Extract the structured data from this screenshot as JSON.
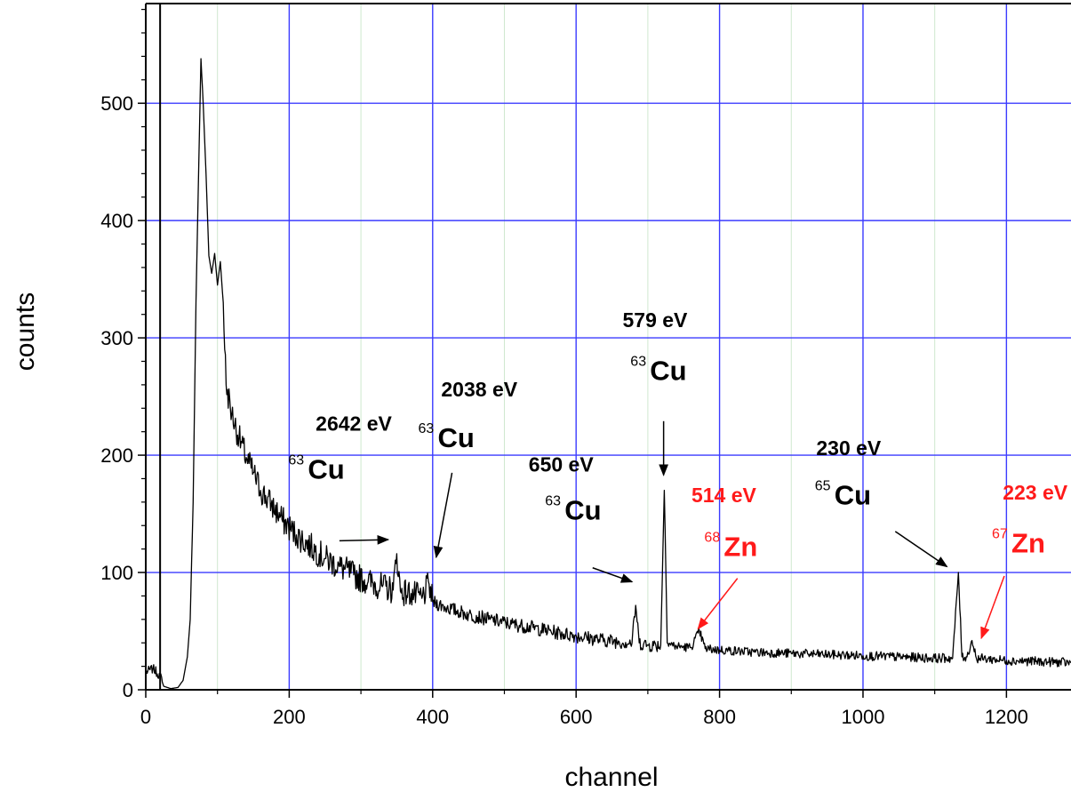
{
  "chart_data": {
    "type": "line",
    "xlabel": "channel",
    "ylabel": "counts",
    "xlim": [
      0,
      1290
    ],
    "ylim": [
      0,
      585
    ],
    "x_ticks": [
      0,
      200,
      400,
      600,
      800,
      1000,
      1200
    ],
    "y_ticks": [
      0,
      100,
      200,
      300,
      400,
      500
    ],
    "x_tick_labels": [
      "0",
      "200",
      "400",
      "600",
      "800",
      "1000",
      "1200"
    ],
    "y_tick_labels": [
      "0",
      "100",
      "200",
      "300",
      "400",
      "500"
    ],
    "grid": true,
    "vertical_marker_x": 20,
    "series": [
      {
        "color": "#000000",
        "points": [
          [
            0,
            15
          ],
          [
            10,
            18
          ],
          [
            20,
            12
          ],
          [
            25,
            3
          ],
          [
            35,
            1
          ],
          [
            45,
            2
          ],
          [
            52,
            8
          ],
          [
            58,
            28
          ],
          [
            62,
            60
          ],
          [
            66,
            160
          ],
          [
            70,
            330
          ],
          [
            74,
            450
          ],
          [
            77,
            538
          ],
          [
            80,
            500
          ],
          [
            84,
            440
          ],
          [
            88,
            370
          ],
          [
            92,
            355
          ],
          [
            96,
            372
          ],
          [
            100,
            345
          ],
          [
            104,
            365
          ],
          [
            108,
            330
          ],
          [
            112,
            260
          ],
          [
            120,
            235
          ],
          [
            130,
            215
          ],
          [
            140,
            198
          ],
          [
            150,
            185
          ],
          [
            160,
            170
          ],
          [
            175,
            158
          ],
          [
            190,
            145
          ],
          [
            210,
            132
          ],
          [
            230,
            122
          ],
          [
            250,
            112
          ],
          [
            270,
            105
          ],
          [
            290,
            98
          ],
          [
            310,
            92
          ],
          [
            330,
            88
          ],
          [
            345,
            85
          ],
          [
            350,
            116
          ],
          [
            355,
            84
          ],
          [
            370,
            82
          ],
          [
            385,
            78
          ],
          [
            395,
            90
          ],
          [
            400,
            75
          ],
          [
            420,
            70
          ],
          [
            450,
            64
          ],
          [
            480,
            60
          ],
          [
            510,
            56
          ],
          [
            540,
            53
          ],
          [
            570,
            49
          ],
          [
            600,
            46
          ],
          [
            630,
            43
          ],
          [
            660,
            41
          ],
          [
            678,
            40
          ],
          [
            683,
            72
          ],
          [
            688,
            40
          ],
          [
            700,
            38
          ],
          [
            718,
            38
          ],
          [
            723,
            170
          ],
          [
            727,
            40
          ],
          [
            740,
            37
          ],
          [
            760,
            36
          ],
          [
            772,
            50
          ],
          [
            780,
            35
          ],
          [
            800,
            34
          ],
          [
            850,
            32
          ],
          [
            900,
            31
          ],
          [
            950,
            30
          ],
          [
            1000,
            29
          ],
          [
            1050,
            28
          ],
          [
            1100,
            27
          ],
          [
            1125,
            27
          ],
          [
            1133,
            100
          ],
          [
            1138,
            28
          ],
          [
            1145,
            28
          ],
          [
            1152,
            42
          ],
          [
            1158,
            27
          ],
          [
            1200,
            25
          ],
          [
            1250,
            24
          ],
          [
            1290,
            23
          ]
        ],
        "noise": [
          {
            "from": 0,
            "to": 22,
            "amp": 4
          },
          {
            "from": 108,
            "to": 400,
            "amp": 12
          },
          {
            "from": 400,
            "to": 720,
            "amp": 6
          },
          {
            "from": 728,
            "to": 1290,
            "amp": 4
          }
        ]
      }
    ],
    "annotations": [
      {
        "energy": "2642 eV",
        "mass": "63",
        "element": "Cu",
        "color": "#000000",
        "energy_pos": [
          290,
          221
        ],
        "iso_pos": [
          226,
          180
        ],
        "arrow_from": [
          270,
          127
        ],
        "arrow_to": [
          338,
          128
        ]
      },
      {
        "energy": "2038 eV",
        "mass": "63",
        "element": "Cu",
        "color": "#000000",
        "energy_pos": [
          465,
          250
        ],
        "iso_pos": [
          407,
          207
        ],
        "arrow_from": [
          427,
          185
        ],
        "arrow_to": [
          405,
          113
        ]
      },
      {
        "energy": "650 eV",
        "mass": "63",
        "element": "Cu",
        "color": "#000000",
        "energy_pos": [
          579,
          186
        ],
        "iso_pos": [
          584,
          145
        ],
        "arrow_from": [
          623,
          104
        ],
        "arrow_to": [
          678,
          92
        ]
      },
      {
        "energy": "579 eV",
        "mass": "63",
        "element": "Cu",
        "color": "#000000",
        "energy_pos": [
          710,
          309
        ],
        "iso_pos": [
          703,
          264
        ],
        "arrow_from": [
          722,
          229
        ],
        "arrow_to": [
          722,
          183
        ]
      },
      {
        "energy": "230 eV",
        "mass": "65",
        "element": "Cu",
        "color": "#000000",
        "energy_pos": [
          980,
          200
        ],
        "iso_pos": [
          960,
          158
        ],
        "arrow_from": [
          1045,
          135
        ],
        "arrow_to": [
          1117,
          105
        ]
      },
      {
        "energy": "514 eV",
        "mass": "68",
        "element": "Zn",
        "color": "#ff1a1a",
        "energy_pos": [
          806,
          160
        ],
        "iso_pos": [
          806,
          114
        ],
        "arrow_from": [
          825,
          95
        ],
        "arrow_to": [
          770,
          52
        ]
      },
      {
        "energy": "223 eV",
        "mass": "67",
        "element": "Zn",
        "color": "#ff1a1a",
        "energy_pos": [
          1240,
          162
        ],
        "iso_pos": [
          1207,
          117
        ],
        "arrow_from": [
          1197,
          97
        ],
        "arrow_to": [
          1165,
          44
        ]
      }
    ]
  }
}
